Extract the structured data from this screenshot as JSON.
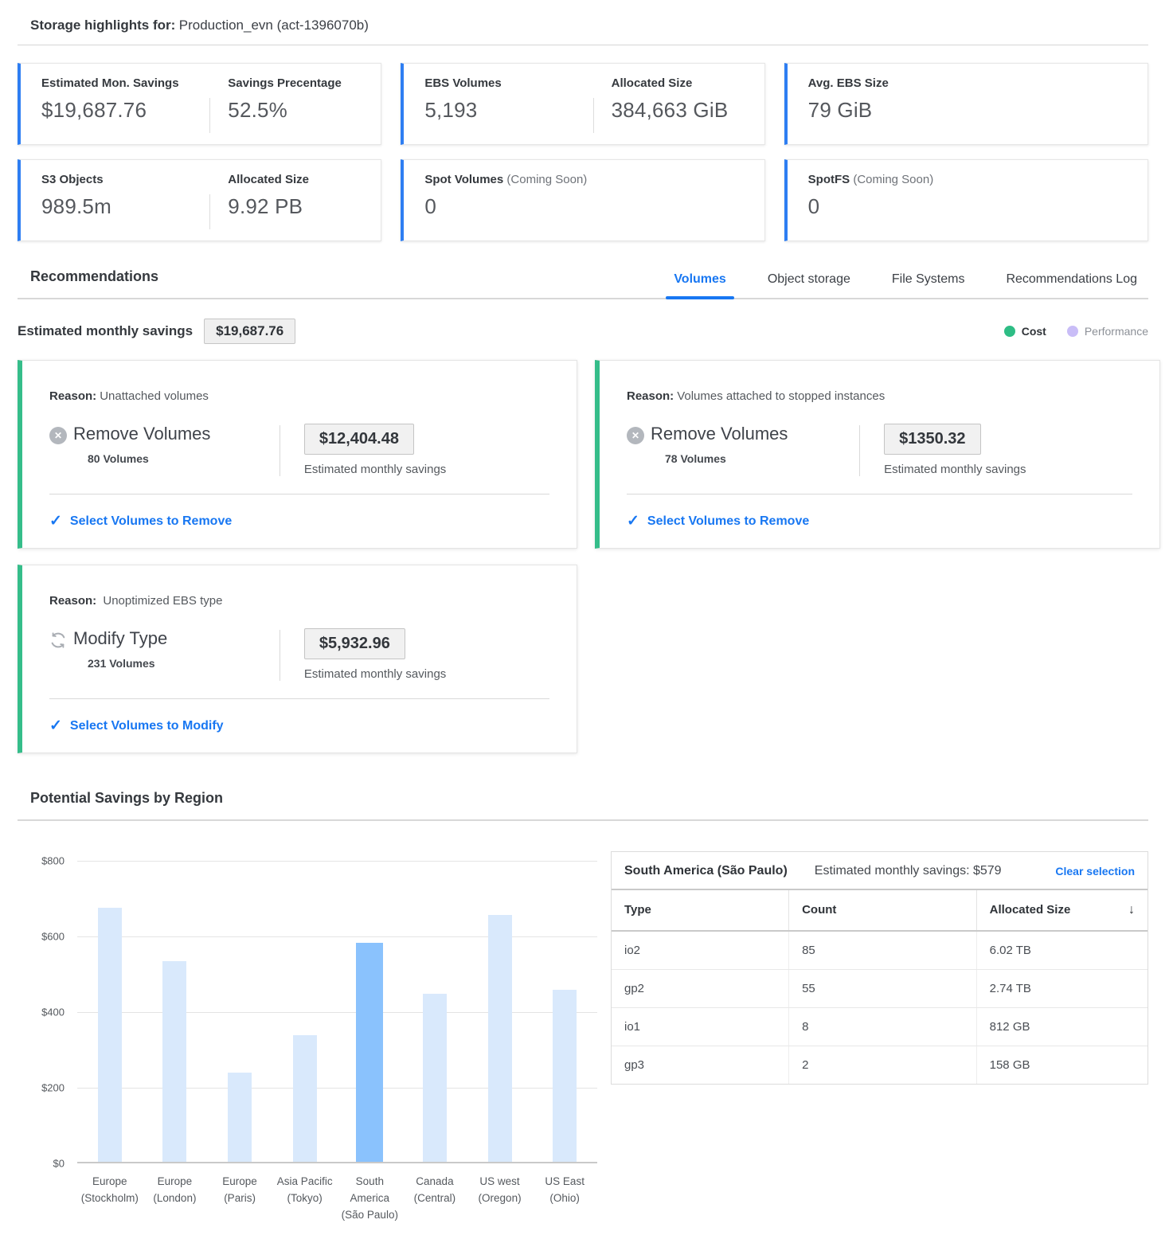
{
  "page_title": {
    "prefix": "Storage highlights for:",
    "account": "Production_evn (act-1396070b)"
  },
  "highlight_cards": {
    "row1": [
      {
        "items": [
          {
            "label": "Estimated Mon. Savings",
            "value": "$19,687.76"
          },
          {
            "label": "Savings Precentage",
            "value": "52.5%"
          }
        ]
      },
      {
        "items": [
          {
            "label": "EBS Volumes",
            "value": "5,193"
          },
          {
            "label": "Allocated Size",
            "value": "384,663 GiB"
          }
        ]
      },
      {
        "items": [
          {
            "label": "Avg. EBS Size",
            "value": "79 GiB"
          }
        ]
      }
    ],
    "row2": [
      {
        "items": [
          {
            "label": "S3 Objects",
            "value": "989.5m"
          },
          {
            "label": "Allocated Size",
            "value": "9.92 PB"
          }
        ]
      },
      {
        "items": [
          {
            "label": "Spot Volumes",
            "suffix": "(Coming Soon)",
            "value": "0"
          }
        ]
      },
      {
        "items": [
          {
            "label": "SpotFS",
            "suffix": "(Coming Soon)",
            "value": "0"
          }
        ]
      }
    ]
  },
  "recommendations": {
    "heading": "Recommendations",
    "tabs": [
      {
        "label": "Volumes",
        "active": true
      },
      {
        "label": "Object storage",
        "active": false
      },
      {
        "label": "File Systems",
        "active": false
      },
      {
        "label": "Recommendations Log",
        "active": false
      }
    ],
    "summary_label": "Estimated monthly savings",
    "summary_value": "$19,687.76",
    "legend": [
      {
        "label": "Cost",
        "color": "#2ebd85"
      },
      {
        "label": "Performance",
        "color": "#c9bdf7"
      }
    ],
    "cards": [
      {
        "reason_label": "Reason:",
        "reason": "Unattached volumes",
        "icon": "remove",
        "action": "Remove Volumes",
        "count": "80 Volumes",
        "value": "$12,404.48",
        "value_caption": "Estimated monthly savings",
        "link": "Select Volumes to Remove"
      },
      {
        "reason_label": "Reason:",
        "reason": "Volumes attached to stopped instances",
        "icon": "remove",
        "action": "Remove Volumes",
        "count": "78 Volumes",
        "value": "$1350.32",
        "value_caption": "Estimated monthly savings",
        "link": "Select Volumes to Remove"
      },
      {
        "reason_label": "Reason:",
        "reason": "Unoptimized EBS type",
        "icon": "modify",
        "action": "Modify Type",
        "count": "231 Volumes",
        "value": "$5,932.96",
        "value_caption": "Estimated monthly savings",
        "link": "Select Volumes to Modify"
      }
    ]
  },
  "chart_data": {
    "type": "bar",
    "title": "Potential Savings by Region",
    "categories": [
      "Europe (Stockholm)",
      "Europe (London)",
      "Europe (Paris)",
      "Asia Pacific (Tokyo)",
      "South America (São Paulo)",
      "Canada (Central)",
      "US west (Oregon)",
      "US East (Ohio)"
    ],
    "label_lines": [
      [
        "Europe",
        "(Stockholm)"
      ],
      [
        "Europe",
        "(London)"
      ],
      [
        "Europe",
        "(Paris)"
      ],
      [
        "Asia Pacific",
        "(Tokyo)"
      ],
      [
        "South America",
        "(São Paulo)"
      ],
      [
        "Canada",
        "(Central)"
      ],
      [
        "US west",
        "(Oregon)"
      ],
      [
        "US East",
        "(Ohio)"
      ]
    ],
    "values": [
      671,
      530,
      236,
      334,
      579,
      444,
      652,
      455
    ],
    "selected_index": 4,
    "selected_value": 579,
    "xlabel": "",
    "ylabel": "",
    "ylim": [
      0,
      800
    ],
    "y_ticks": [
      0,
      200,
      400,
      600,
      800
    ],
    "y_tick_labels": [
      "$0",
      "$200",
      "$400",
      "$600",
      "$800"
    ],
    "grid": true,
    "legend_position": "none",
    "bar_color": "#d9e9fc",
    "selected_bar_color": "#8ac2fd"
  },
  "region_table": {
    "title": "South America (São Paulo)",
    "subtitle": "Estimated monthly savings: $579",
    "clear_label": "Clear selection",
    "sort_icon": "arrow-down-icon",
    "columns": [
      "Type",
      "Count",
      "Allocated Size"
    ],
    "rows": [
      [
        "io2",
        "85",
        "6.02 TB"
      ],
      [
        "gp2",
        "55",
        "2.74 TB"
      ],
      [
        "io1",
        "8",
        "812 GB"
      ],
      [
        "gp3",
        "2",
        "158 GB"
      ]
    ]
  }
}
